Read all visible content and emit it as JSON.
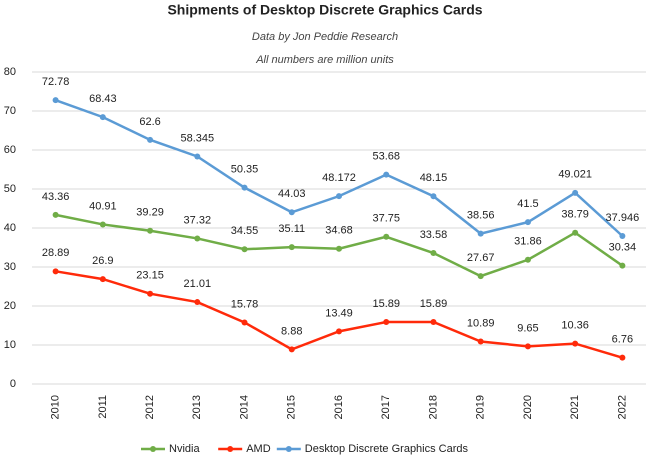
{
  "chart_data": {
    "type": "line",
    "title": "Shipments of Desktop Discrete Graphics Cards",
    "subtitle": "Data by Jon Peddie Research",
    "annotation": "All numbers are million units",
    "categories": [
      "2010",
      "2011",
      "2012",
      "2013",
      "2014",
      "2015",
      "2016",
      "2017",
      "2018",
      "2019",
      "2020",
      "2021",
      "2022"
    ],
    "series": [
      {
        "name": "Nvidia",
        "color": "#70ad47",
        "values": [
          43.36,
          40.91,
          39.29,
          37.32,
          34.55,
          35.11,
          34.68,
          37.75,
          33.58,
          27.67,
          31.86,
          38.79,
          30.34
        ]
      },
      {
        "name": "AMD",
        "color": "#ff2a0a",
        "values": [
          28.89,
          26.9,
          23.15,
          21.01,
          15.78,
          8.88,
          13.49,
          15.89,
          15.89,
          10.89,
          9.65,
          10.36,
          6.76
        ]
      },
      {
        "name": "Desktop Discrete Graphics Cards",
        "color": "#5b9bd5",
        "values": [
          72.78,
          68.43,
          62.6,
          58.345,
          50.35,
          44.03,
          48.172,
          53.68,
          48.15,
          38.56,
          41.5,
          49.021,
          37.946
        ]
      }
    ],
    "ylim": [
      0,
      80
    ],
    "yticks": [
      0,
      10,
      20,
      30,
      40,
      50,
      60,
      70,
      80
    ],
    "grid": true,
    "legend": "bottom"
  }
}
